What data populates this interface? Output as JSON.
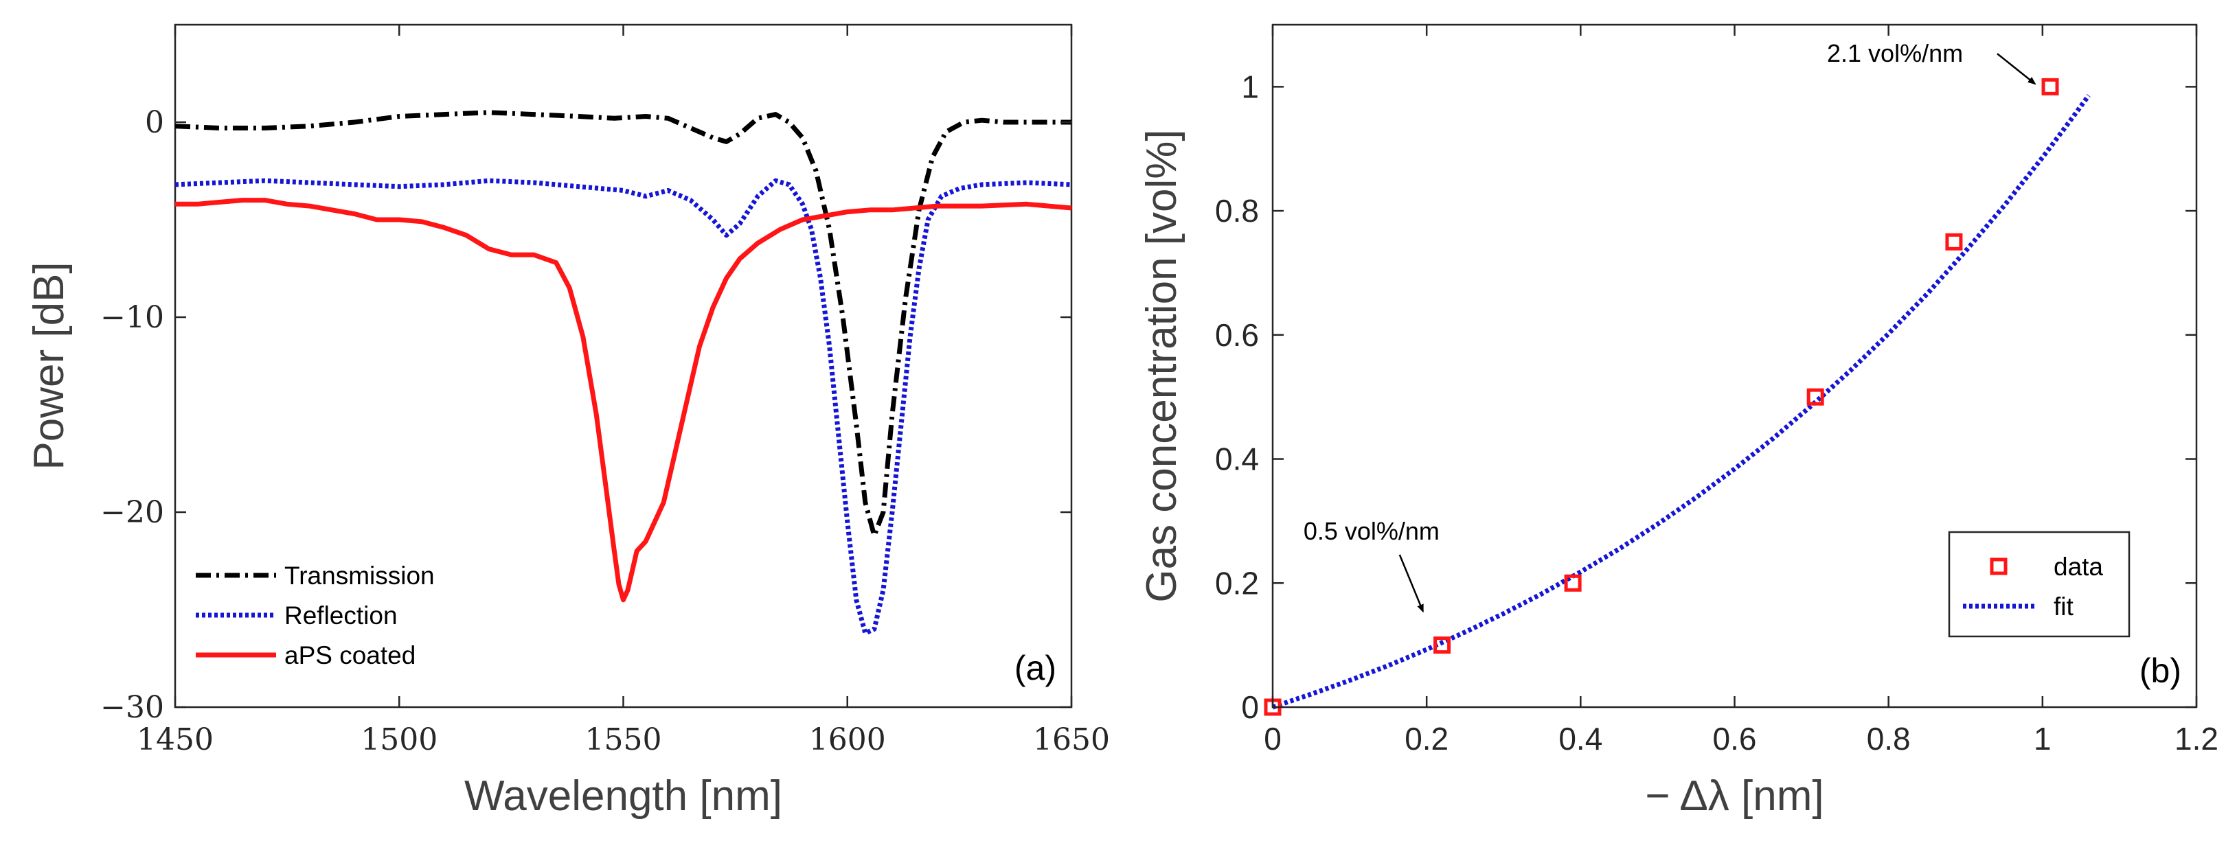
{
  "chart_data": [
    {
      "type": "line",
      "panel_label": "(a)",
      "xlabel": "Wavelength [nm]",
      "ylabel": "Power [dB]",
      "xlim": [
        1450,
        1650
      ],
      "ylim": [
        -30,
        5
      ],
      "xticks": [
        1450,
        1500,
        1550,
        1600,
        1650
      ],
      "yticks": [
        0,
        -10,
        -20,
        -30
      ],
      "xtick_labels": [
        "1450",
        "1500",
        "1550",
        "1600",
        "1650"
      ],
      "ytick_labels": [
        "0",
        "−10",
        "−20",
        "−30"
      ],
      "grid": false,
      "legend_position": "bottom-left",
      "series": [
        {
          "name": "Transmission",
          "color": "#000000",
          "style": "dashdot",
          "x": [
            1450,
            1460,
            1470,
            1480,
            1490,
            1500,
            1510,
            1520,
            1530,
            1540,
            1548,
            1555,
            1560,
            1565,
            1570,
            1573,
            1576,
            1580,
            1584,
            1587,
            1590,
            1593,
            1596,
            1599,
            1602,
            1604,
            1606,
            1608,
            1610,
            1613,
            1616,
            1619,
            1622,
            1626,
            1630,
            1635,
            1640,
            1645,
            1650
          ],
          "y": [
            -0.2,
            -0.3,
            -0.3,
            -0.2,
            0.0,
            0.3,
            0.4,
            0.5,
            0.4,
            0.3,
            0.2,
            0.3,
            0.2,
            -0.3,
            -0.8,
            -1.0,
            -0.6,
            0.2,
            0.4,
            0.0,
            -0.8,
            -2.5,
            -5.5,
            -10.0,
            -15.5,
            -19.5,
            -21.2,
            -20.0,
            -15.0,
            -9.0,
            -4.5,
            -1.8,
            -0.5,
            0.0,
            0.1,
            0.0,
            0.0,
            0.0,
            0.0
          ]
        },
        {
          "name": "Reflection",
          "color": "#1515d8",
          "style": "dotted",
          "x": [
            1450,
            1460,
            1470,
            1480,
            1490,
            1500,
            1510,
            1520,
            1530,
            1540,
            1550,
            1555,
            1560,
            1565,
            1570,
            1573,
            1576,
            1580,
            1584,
            1587,
            1590,
            1592,
            1594,
            1596,
            1598,
            1600,
            1602,
            1604,
            1606,
            1608,
            1610,
            1612,
            1614,
            1616,
            1618,
            1621,
            1625,
            1630,
            1640,
            1650
          ],
          "y": [
            -3.2,
            -3.1,
            -3.0,
            -3.1,
            -3.2,
            -3.3,
            -3.2,
            -3.0,
            -3.1,
            -3.3,
            -3.5,
            -3.8,
            -3.5,
            -4.0,
            -5.0,
            -5.8,
            -5.2,
            -3.8,
            -3.0,
            -3.2,
            -4.2,
            -5.5,
            -8.0,
            -11.5,
            -16.0,
            -20.5,
            -24.5,
            -26.2,
            -26.0,
            -24.0,
            -20.0,
            -15.5,
            -11.0,
            -7.5,
            -5.0,
            -3.8,
            -3.4,
            -3.2,
            -3.1,
            -3.2
          ]
        },
        {
          "name": "aPS coated",
          "color": "#ff1515",
          "style": "solid",
          "x": [
            1450,
            1455,
            1460,
            1465,
            1470,
            1475,
            1480,
            1485,
            1490,
            1495,
            1500,
            1505,
            1510,
            1515,
            1520,
            1525,
            1530,
            1535,
            1538,
            1541,
            1544,
            1546,
            1548,
            1549,
            1550,
            1551,
            1552,
            1553,
            1555,
            1557,
            1559,
            1561,
            1564,
            1567,
            1570,
            1573,
            1576,
            1580,
            1585,
            1590,
            1595,
            1600,
            1605,
            1610,
            1620,
            1630,
            1640,
            1650
          ],
          "y": [
            -4.2,
            -4.2,
            -4.1,
            -4.0,
            -4.0,
            -4.2,
            -4.3,
            -4.5,
            -4.7,
            -5.0,
            -5.0,
            -5.1,
            -5.4,
            -5.8,
            -6.5,
            -6.8,
            -6.8,
            -7.2,
            -8.5,
            -11.0,
            -15.0,
            -18.5,
            -22.0,
            -23.7,
            -24.5,
            -24.0,
            -23.0,
            -22.0,
            -21.5,
            -20.5,
            -19.5,
            -17.5,
            -14.5,
            -11.5,
            -9.5,
            -8.0,
            -7.0,
            -6.2,
            -5.5,
            -5.0,
            -4.8,
            -4.6,
            -4.5,
            -4.5,
            -4.3,
            -4.3,
            -4.2,
            -4.4
          ]
        }
      ]
    },
    {
      "type": "scatter",
      "panel_label": "(b)",
      "xlabel": "− Δλ [nm]",
      "ylabel": "Gas concentration [vol%]",
      "xlim": [
        0,
        1.2
      ],
      "ylim": [
        0,
        1.1
      ],
      "xticks": [
        0,
        0.2,
        0.4,
        0.6,
        0.8,
        1.0,
        1.2
      ],
      "yticks": [
        0,
        0.2,
        0.4,
        0.6,
        0.8,
        1.0
      ],
      "xtick_labels": [
        "0",
        "0.2",
        "0.4",
        "0.6",
        "0.8",
        "1",
        "1.2"
      ],
      "ytick_labels": [
        "0",
        "0.2",
        "0.4",
        "0.6",
        "0.8",
        "1"
      ],
      "grid": false,
      "legend_position": "bottom-right",
      "series": [
        {
          "name": "data",
          "color": "#ff1515",
          "marker": "square",
          "x": [
            0,
            0.22,
            0.39,
            0.705,
            0.885,
            1.01
          ],
          "y": [
            0,
            0.1,
            0.2,
            0.5,
            0.75,
            1.0
          ]
        },
        {
          "name": "fit",
          "color": "#1515d8",
          "style": "dotted",
          "x": [
            0,
            0.05,
            0.1,
            0.15,
            0.2,
            0.25,
            0.3,
            0.35,
            0.4,
            0.45,
            0.5,
            0.55,
            0.6,
            0.65,
            0.7,
            0.75,
            0.8,
            0.85,
            0.9,
            0.95,
            1.0,
            1.02,
            1.04,
            1.06
          ],
          "y": [
            0,
            0.021,
            0.043,
            0.067,
            0.093,
            0.121,
            0.151,
            0.183,
            0.218,
            0.255,
            0.295,
            0.338,
            0.384,
            0.433,
            0.486,
            0.542,
            0.602,
            0.666,
            0.735,
            0.808,
            0.886,
            0.919,
            0.952,
            0.986
          ]
        }
      ],
      "annotations": [
        {
          "text": "2.1 vol%/nm",
          "x": 0.72,
          "y": 1.04,
          "arrow_to": [
            1.0,
            0.995
          ]
        },
        {
          "text": "0.5 vol%/nm",
          "x": 0.04,
          "y": 0.27,
          "arrow_to": [
            0.2,
            0.14
          ]
        }
      ]
    }
  ]
}
